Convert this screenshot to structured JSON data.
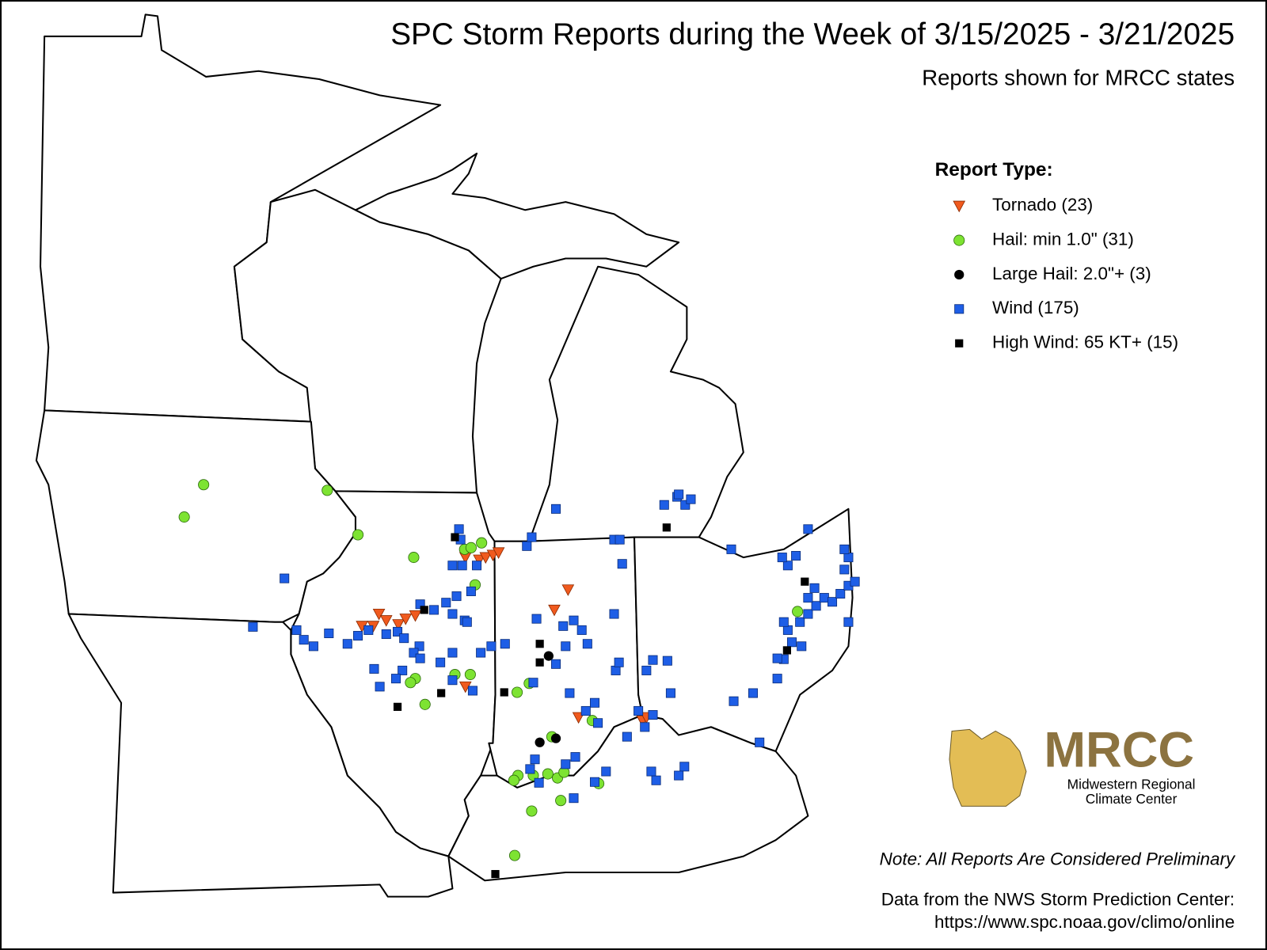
{
  "header": {
    "title": "SPC Storm Reports during the Week of 3/15/2025 - 3/21/2025",
    "subtitle": "Reports shown for MRCC states"
  },
  "legend": {
    "title": "Report Type:",
    "items": [
      "Tornado (23)",
      "Hail: min 1.0\" (31)",
      "Large Hail: 2.0\"+ (3)",
      "Wind (175)",
      "High Wind: 65 KT+ (15)"
    ]
  },
  "logo": {
    "name": "MRCC",
    "line1": "Midwestern Regional",
    "line2": "Climate Center"
  },
  "footer": {
    "note": "Note: All Reports Are Considered Preliminary",
    "source": "Data from the NWS Storm Prediction Center:",
    "url": "https://www.spc.noaa.gov/climo/online"
  }
}
